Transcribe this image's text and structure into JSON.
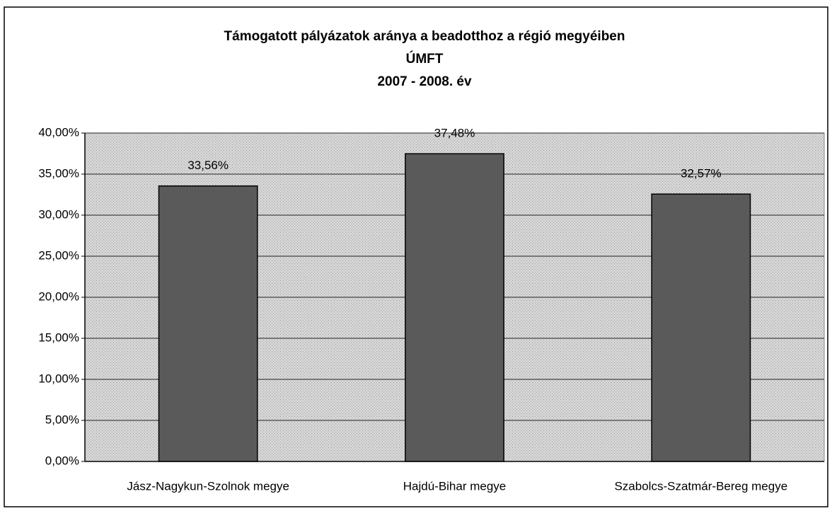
{
  "chart_data": {
    "type": "bar",
    "title": [
      "Támogatott pályázatok aránya a beadotthoz a régió megyéiben",
      "ÚMFT",
      "2007 - 2008. év"
    ],
    "categories": [
      "Jász-Nagykun-Szolnok megye",
      "Hajdú-Bihar megye",
      "Szabolcs-Szatmár-Bereg megye"
    ],
    "values": [
      33.56,
      37.48,
      32.57
    ],
    "value_labels": [
      "33,56%",
      "37,48%",
      "32,57%"
    ],
    "color": "#5a5a5a",
    "ylim": [
      0,
      40
    ],
    "yticks": [
      {
        "value": 0,
        "label": "0,00%"
      },
      {
        "value": 5,
        "label": "5,00%"
      },
      {
        "value": 10,
        "label": "10,00%"
      },
      {
        "value": 15,
        "label": "15,00%"
      },
      {
        "value": 20,
        "label": "20,00%"
      },
      {
        "value": 25,
        "label": "25,00%"
      },
      {
        "value": 30,
        "label": "30,00%"
      },
      {
        "value": 35,
        "label": "35,00%"
      },
      {
        "value": 40,
        "label": "40,00%"
      }
    ],
    "grid": true
  }
}
